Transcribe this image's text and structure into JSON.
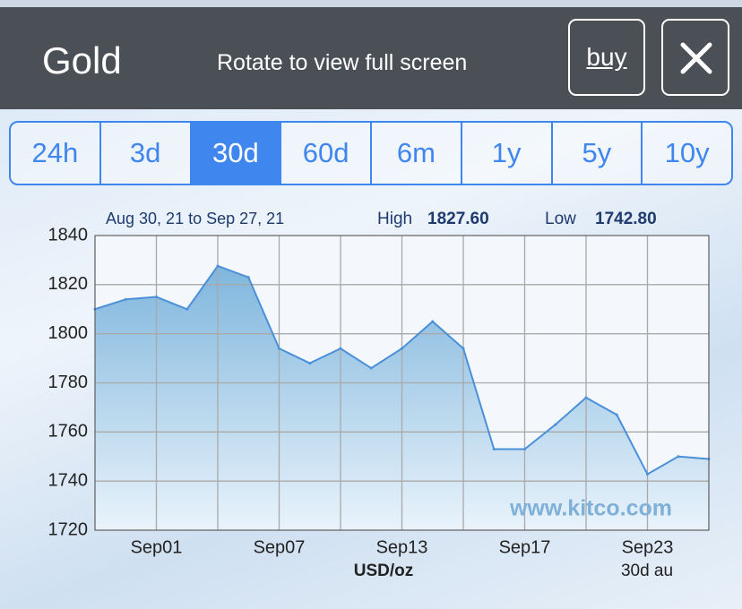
{
  "header": {
    "title": "Gold",
    "rotate_hint": "Rotate to view full screen",
    "buy": "buy"
  },
  "tabs": {
    "items": [
      "24h",
      "3d",
      "30d",
      "60d",
      "6m",
      "1y",
      "5y",
      "10y"
    ],
    "active": 2
  },
  "chart_data": {
    "type": "area",
    "range": "Aug 30, 21 to Sep 27, 21",
    "high_label": "High",
    "high": "1827.60",
    "low_label": "Low",
    "low": "1742.80",
    "watermark": "www.kitco.com",
    "y_label": "USD/oz",
    "footnote": "30d au",
    "categories": [
      null,
      null,
      "Sep01",
      null,
      null,
      null,
      "Sep07",
      null,
      null,
      null,
      "Sep13",
      null,
      null,
      null,
      "Sep17",
      null,
      null,
      null,
      "Sep23",
      null,
      null
    ],
    "values": [
      1810,
      1814,
      1815,
      1810,
      1827.6,
      1823,
      1794,
      1788,
      1794,
      1786,
      1794,
      1805,
      1794,
      1753,
      1753,
      1763,
      1774,
      1767,
      1742.8,
      1750,
      1749
    ],
    "color": "#4a90d9",
    "ylim": [
      1720,
      1840
    ],
    "yticks": [
      1720,
      1740,
      1760,
      1780,
      1800,
      1820,
      1840
    ],
    "grid": true
  }
}
